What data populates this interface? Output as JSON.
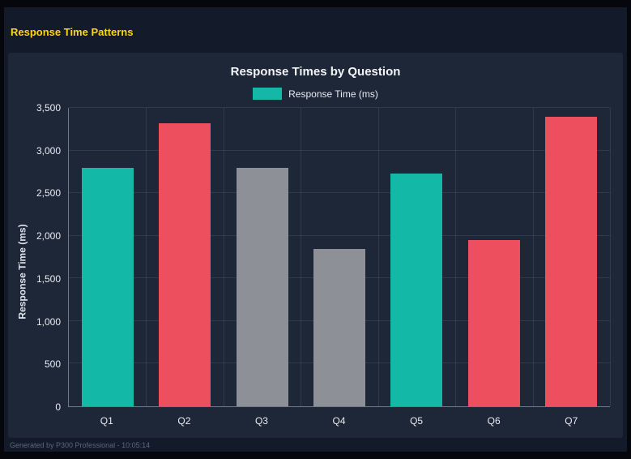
{
  "window": {
    "page_title": "Response Time Patterns",
    "footer": "Generated by P300 Professional - 10:05:14"
  },
  "colors": {
    "background": "#131b2a",
    "panel": "#1d2737",
    "title_yellow": "#ffd60a",
    "teal": "#14b8a6",
    "red": "#ee4f5f",
    "gray": "#8e9097",
    "grid": "rgba(255,255,255,0.09)",
    "axis_text": "#e8ecf2"
  },
  "chart_data": {
    "type": "bar",
    "title": "Response Times by Question",
    "legend": [
      {
        "label": "Response Time (ms)",
        "color": "#14b8a6"
      }
    ],
    "legend_position": "top",
    "categories": [
      "Q1",
      "Q2",
      "Q3",
      "Q4",
      "Q5",
      "Q6",
      "Q7"
    ],
    "values": [
      2800,
      3320,
      2800,
      1850,
      2730,
      1950,
      3400
    ],
    "bar_colors": [
      "#14b8a6",
      "#ee4f5f",
      "#8e9097",
      "#8e9097",
      "#14b8a6",
      "#ee4f5f",
      "#ee4f5f"
    ],
    "xlabel": "",
    "ylabel": "Response Time (ms)",
    "ylim": [
      0,
      3500
    ],
    "ytick_step": 500,
    "yticks": [
      "0",
      "500",
      "1,000",
      "1,500",
      "2,000",
      "2,500",
      "3,000",
      "3,500"
    ],
    "grid": true
  }
}
